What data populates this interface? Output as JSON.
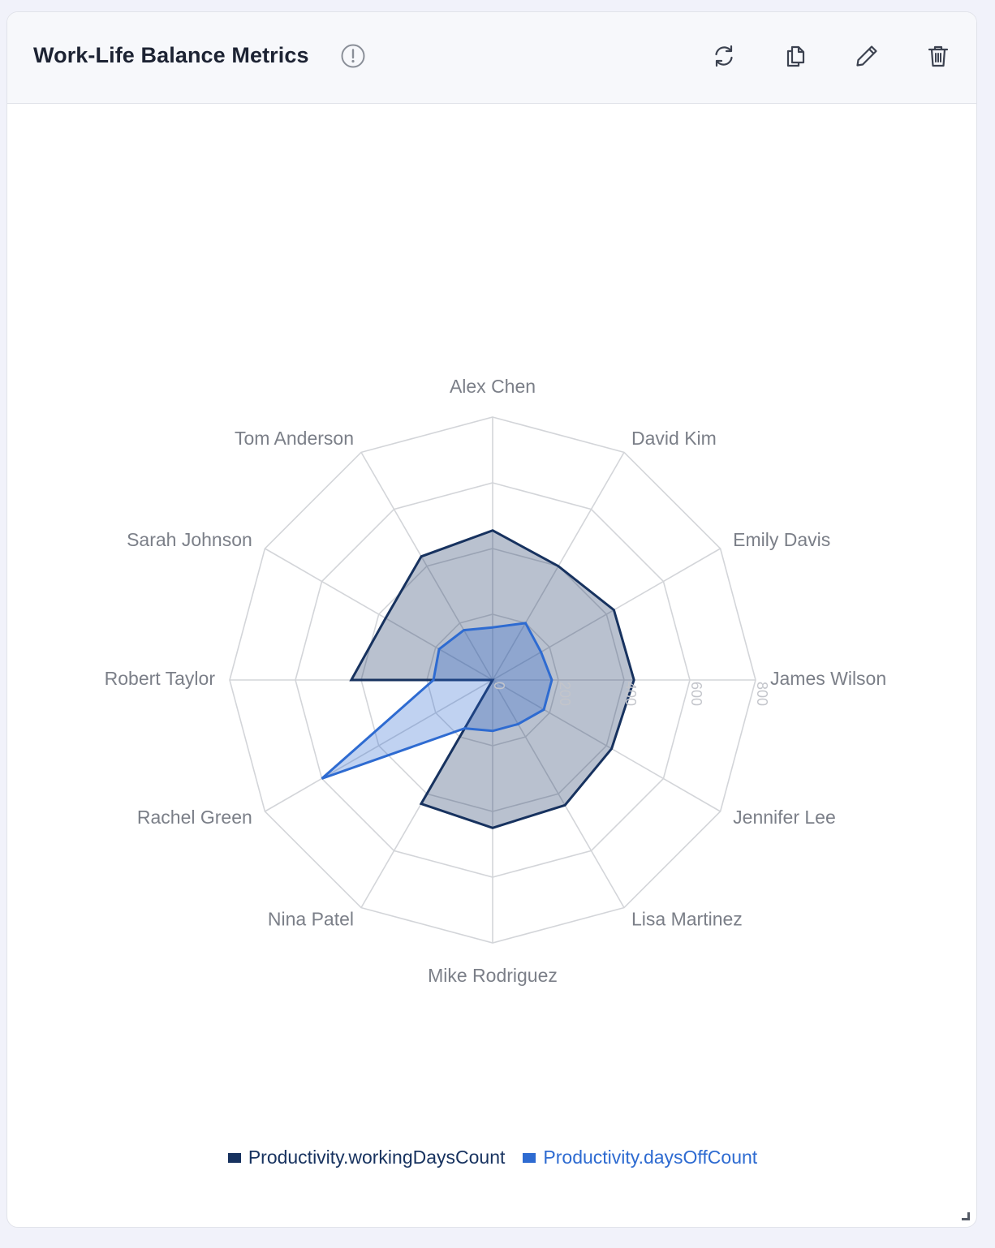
{
  "header": {
    "title": "Work-Life Balance Metrics",
    "actions": [
      {
        "name": "refresh-button",
        "icon": "refresh-icon"
      },
      {
        "name": "duplicate-button",
        "icon": "copy-icon"
      },
      {
        "name": "edit-button",
        "icon": "pencil-icon"
      },
      {
        "name": "delete-button",
        "icon": "trash-icon"
      }
    ]
  },
  "chart_data": {
    "type": "radar",
    "categories": [
      "Alex Chen",
      "David Kim",
      "Emily Davis",
      "James Wilson",
      "Jennifer Lee",
      "Lisa Martinez",
      "Mike Rodriguez",
      "Nina Patel",
      "Rachel Green",
      "Robert Taylor",
      "Sarah Johnson",
      "Tom Anderson"
    ],
    "series": [
      {
        "name": "Productivity.workingDaysCount",
        "color": "#17325f",
        "fill": "rgba(23,50,95,0.30)",
        "values": [
          455,
          400,
          426,
          430,
          418,
          440,
          450,
          435,
          0,
          430,
          376,
          434
        ]
      },
      {
        "name": "Productivity.daysOffCount",
        "color": "#2e6bd1",
        "fill": "rgba(46,107,209,0.30)",
        "values": [
          160,
          200,
          170,
          180,
          180,
          155,
          155,
          170,
          600,
          180,
          188,
          175
        ]
      }
    ],
    "ticks": [
      "0",
      "200",
      "400",
      "600",
      "800"
    ],
    "rmax": 800,
    "grid": true,
    "legend_position": "bottom"
  }
}
